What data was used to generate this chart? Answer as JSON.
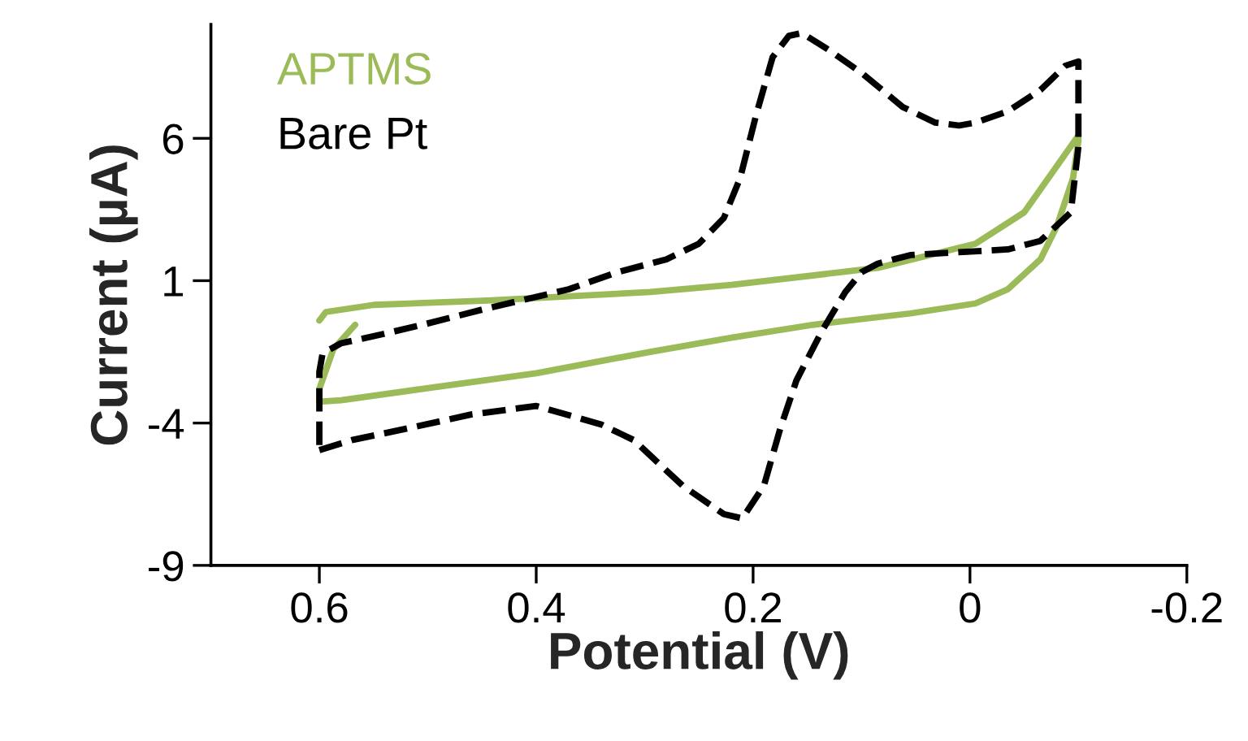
{
  "chart_data": {
    "type": "line",
    "xlabel": "Potential (V)",
    "ylabel": "Current (µA)",
    "xlim": [
      0.7,
      -0.2
    ],
    "xticks": [
      0.6,
      0.4,
      0.2,
      0,
      -0.2
    ],
    "ylim": [
      -9,
      10
    ],
    "yticks": [
      6,
      1,
      -4,
      -9
    ],
    "grid": false,
    "legend": "top left",
    "marker": "none",
    "series": [
      {
        "name": "APTMS",
        "color": "#9bbb59",
        "line_style": "solid",
        "x": [
          0.6,
          0.594,
          0.55,
          0.445,
          0.295,
          0.22,
          0.085,
          -0.005,
          -0.05,
          -0.1,
          -0.1,
          -0.095,
          -0.08,
          -0.065,
          -0.035,
          -0.005,
          0.055,
          0.145,
          0.22,
          0.295,
          0.4,
          0.505,
          0.58,
          0.6,
          0.6,
          0.587,
          0.567
        ],
        "values": [
          -0.4,
          -0.1,
          0.15,
          0.3,
          0.6,
          0.85,
          1.45,
          2.3,
          3.4,
          6.1,
          5.9,
          4.6,
          2.9,
          1.75,
          0.7,
          0.2,
          -0.15,
          -0.55,
          -1.0,
          -1.5,
          -2.25,
          -2.8,
          -3.2,
          -3.25,
          -2.8,
          -1.4,
          -0.55
        ]
      },
      {
        "name": "Bare Pt",
        "color": "#000000",
        "line_style": "dashed",
        "x": [
          0.6,
          0.57,
          0.52,
          0.46,
          0.4,
          0.34,
          0.31,
          0.265,
          0.227,
          0.21,
          0.19,
          0.175,
          0.16,
          0.137,
          0.115,
          0.1,
          0.085,
          0.055,
          0.01,
          -0.035,
          -0.065,
          -0.093,
          -0.1,
          -0.1,
          -0.088,
          -0.065,
          -0.035,
          -0.005,
          0.01,
          0.032,
          0.062,
          0.1,
          0.13,
          0.155,
          0.167,
          0.182,
          0.197,
          0.212,
          0.227,
          0.25,
          0.28,
          0.325,
          0.37,
          0.445,
          0.505,
          0.55,
          0.58,
          0.597,
          0.6,
          0.6
        ],
        "values": [
          -4.95,
          -4.6,
          -4.2,
          -3.7,
          -3.4,
          -4.05,
          -4.6,
          -6.2,
          -7.2,
          -7.35,
          -6.2,
          -4.2,
          -2.5,
          -0.8,
          0.6,
          1.3,
          1.6,
          1.9,
          2.0,
          2.1,
          2.4,
          3.4,
          5.7,
          8.7,
          8.55,
          7.7,
          6.95,
          6.55,
          6.45,
          6.55,
          7.1,
          8.3,
          9.1,
          9.7,
          9.6,
          8.85,
          6.85,
          4.6,
          3.2,
          2.3,
          1.75,
          1.3,
          0.7,
          0.03,
          -0.55,
          -0.95,
          -1.2,
          -1.55,
          -2.2,
          -4.8
        ]
      }
    ]
  }
}
